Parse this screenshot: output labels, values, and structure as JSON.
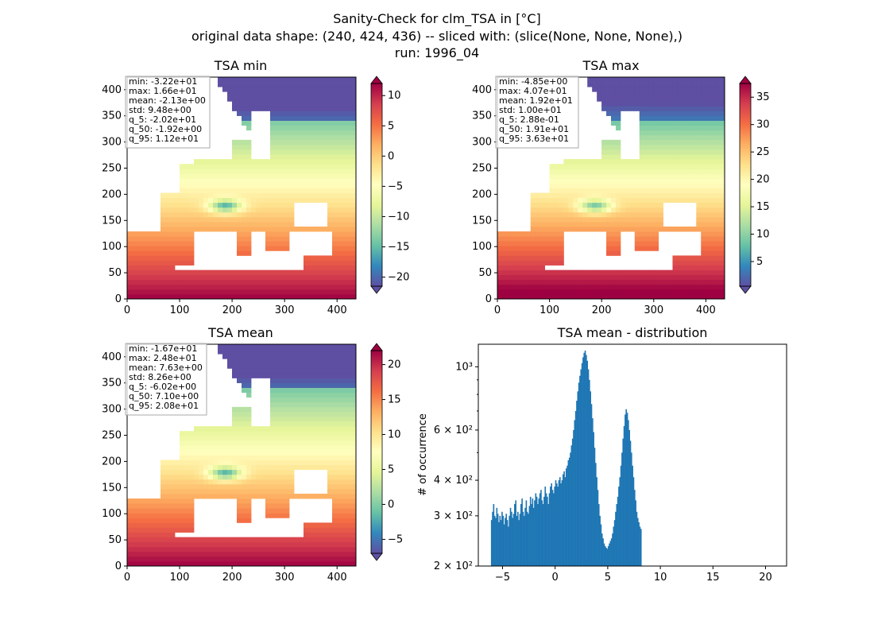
{
  "figure": {
    "title_lines": [
      "Sanity-Check for clm_TSA in [°C]",
      "original data shape: (240, 424, 436) -- sliced with: (slice(None, None, None),)",
      "run: 1996_04"
    ]
  },
  "colors": {
    "spectral_r": [
      "#5e4fa2",
      "#3288bd",
      "#66c2a5",
      "#abdda4",
      "#e6f598",
      "#ffffbf",
      "#fee08b",
      "#fdae61",
      "#f46d43",
      "#d53e4f",
      "#9e0142"
    ],
    "hist_bar": "#1f77b4",
    "land_background": "#ffffff"
  },
  "chart_data": [
    {
      "type": "heatmap",
      "title": "TSA min",
      "xlim": [
        0,
        436
      ],
      "ylim": [
        0,
        424
      ],
      "x_ticks": [
        0,
        100,
        200,
        300,
        400
      ],
      "y_ticks": [
        0,
        50,
        100,
        150,
        200,
        250,
        300,
        350,
        400
      ],
      "colorbar": {
        "min": -21.5,
        "max": 12,
        "ticks": [
          10,
          5,
          0,
          -5,
          -10,
          -15,
          -20
        ],
        "extend": "both",
        "cmap": "spectral_r"
      },
      "stats": [
        "min: -3.22e+01",
        "max: 1.66e+01",
        "mean: -2.13e+00",
        "std: 9.48e+00",
        "q_5: -2.02e+01",
        "q_50: -1.92e+00",
        "q_95: 1.12e+01"
      ]
    },
    {
      "type": "heatmap",
      "title": "TSA max",
      "xlim": [
        0,
        436
      ],
      "ylim": [
        0,
        424
      ],
      "x_ticks": [
        0,
        100,
        200,
        300,
        400
      ],
      "y_ticks": [
        0,
        50,
        100,
        150,
        200,
        250,
        300,
        350,
        400
      ],
      "colorbar": {
        "min": 0.5,
        "max": 37.5,
        "ticks": [
          35,
          30,
          25,
          20,
          15,
          10,
          5
        ],
        "extend": "both",
        "cmap": "spectral_r"
      },
      "stats": [
        "min: -4.85e+00",
        "max: 4.07e+01",
        "mean: 1.92e+01",
        "std: 1.00e+01",
        "q_5: 2.88e-01",
        "q_50: 1.91e+01",
        "q_95: 3.63e+01"
      ]
    },
    {
      "type": "heatmap",
      "title": "TSA mean",
      "xlim": [
        0,
        436
      ],
      "ylim": [
        0,
        424
      ],
      "x_ticks": [
        0,
        100,
        200,
        300,
        400
      ],
      "y_ticks": [
        0,
        50,
        100,
        150,
        200,
        250,
        300,
        350,
        400
      ],
      "colorbar": {
        "min": -7,
        "max": 22,
        "ticks": [
          20,
          15,
          10,
          5,
          0,
          -5
        ],
        "extend": "both",
        "cmap": "spectral_r"
      },
      "stats": [
        "min: -1.67e+01",
        "max: 2.48e+01",
        "mean: 7.63e+00",
        "std: 8.26e+00",
        "q_5: -6.02e+00",
        "q_50: 7.10e+00",
        "q_95: 2.08e+01"
      ]
    },
    {
      "type": "bar",
      "title": "TSA mean - distribution",
      "xlabel": "",
      "ylabel": "# of occurrence",
      "yscale": "log",
      "xlim": [
        -7.3,
        22.0
      ],
      "ylim": [
        200,
        1200
      ],
      "x_ticks": [
        -5,
        0,
        5,
        10,
        15,
        20
      ],
      "y_ticks": [
        {
          "value": 200,
          "label": "2 × 10²"
        },
        {
          "value": 300,
          "label": "3 × 10²"
        },
        {
          "value": 400,
          "label": "4 × 10²"
        },
        {
          "value": 600,
          "label": "6 × 10²"
        },
        {
          "value": 1000,
          "label": "10³"
        }
      ],
      "series": [
        {
          "bin_start": -6.1,
          "bin_width": 0.1,
          "values": [
            290,
            310,
            330,
            300,
            295,
            320,
            305,
            285,
            300,
            290,
            310,
            300,
            280,
            295,
            305,
            290,
            275,
            300,
            320,
            310,
            295,
            305,
            330,
            340,
            300,
            310,
            290,
            305,
            330,
            345,
            310,
            300,
            320,
            340,
            310,
            305,
            325,
            350,
            330,
            345,
            320,
            340,
            360,
            350,
            330,
            345,
            360,
            370,
            340,
            330,
            350,
            380,
            360,
            350,
            330,
            360,
            380,
            390,
            370,
            360,
            380,
            400,
            390,
            380,
            400,
            410,
            390,
            400,
            420,
            430,
            410,
            440,
            450,
            470,
            480,
            500,
            530,
            560,
            600,
            650,
            700,
            760,
            820,
            880,
            930,
            980,
            1030,
            1080,
            1120,
            1140,
            1100,
            1050,
            980,
            900,
            820,
            740,
            660,
            590,
            520,
            460,
            410,
            370,
            330,
            300,
            280,
            260,
            250,
            240,
            235,
            232,
            230,
            235,
            240,
            245,
            250,
            260,
            275,
            290,
            310,
            330,
            350,
            380,
            410,
            450,
            500,
            560,
            620,
            680,
            710,
            690,
            650,
            600,
            550,
            500,
            450,
            410,
            370,
            340,
            310,
            295,
            285,
            275,
            270
          ]
        }
      ]
    }
  ]
}
